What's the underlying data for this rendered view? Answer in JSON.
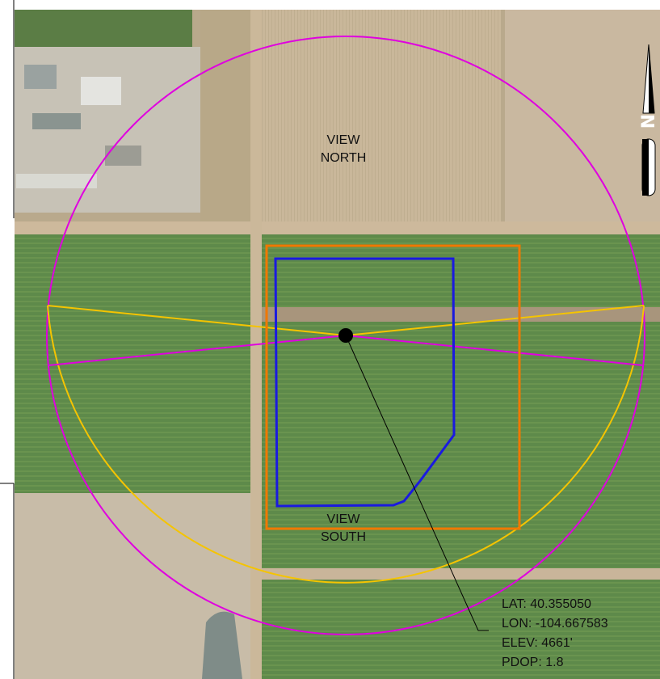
{
  "map": {
    "view_labels": {
      "north_line1": "VIEW",
      "north_line2": "NORTH",
      "south_line1": "VIEW",
      "south_line2": "SOUTH"
    },
    "point_info": {
      "lat": "LAT: 40.355050",
      "lon": "LON: -104.667583",
      "elev": "ELEV: 4661'",
      "pdop": "PDOP: 1.8"
    },
    "north_arrow_letter": "N",
    "colors": {
      "circle_outline": "#e000e0",
      "view_wedge_outline": "#f5c400",
      "orange_boundary": "#f07800",
      "blue_boundary": "#1a1ae0",
      "center_point": "#000000",
      "leader_line": "#000000"
    },
    "icons": [
      "north-arrow-icon",
      "center-point-marker"
    ]
  }
}
